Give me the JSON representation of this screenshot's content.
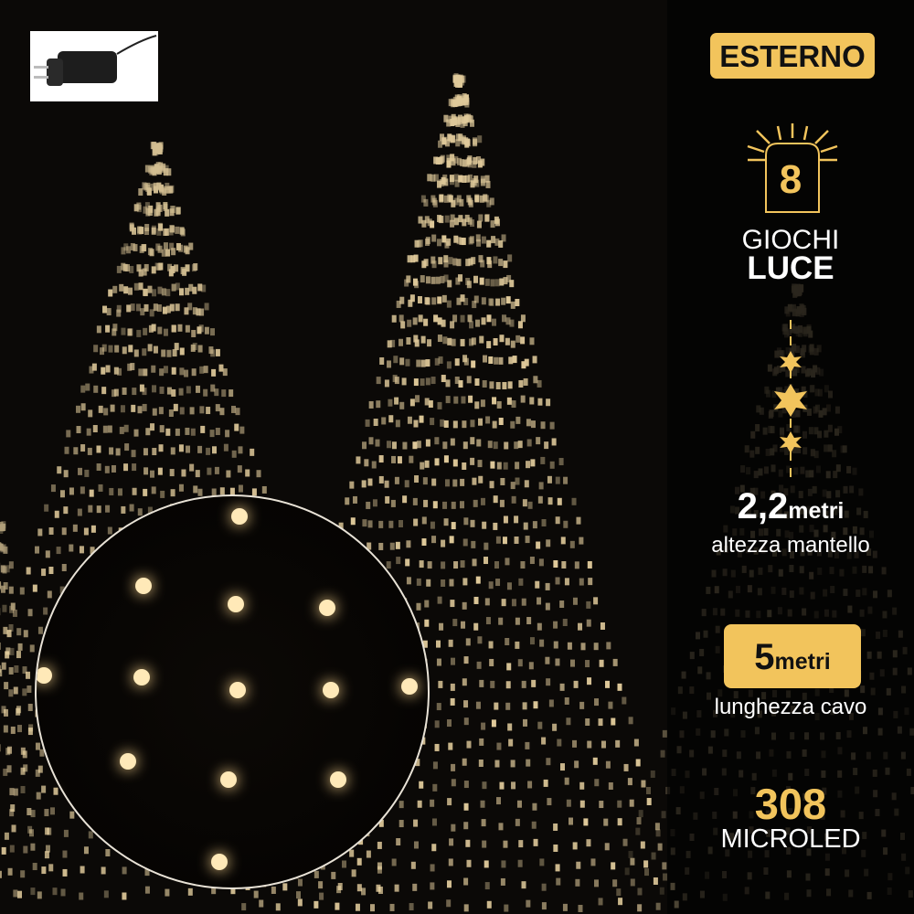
{
  "badge": {
    "label": "ESTERNO"
  },
  "light_games": {
    "count": "8",
    "line1": "GIOCHI",
    "line2": "LUCE"
  },
  "height": {
    "value": "2,2",
    "unit": "metri",
    "caption": "altezza mantello"
  },
  "cable": {
    "value": "5",
    "unit": "metri",
    "caption": "lunghezza cavo"
  },
  "leds": {
    "count": "308",
    "label": "MICROLED"
  },
  "colors": {
    "accent": "#f2c45c",
    "background": "#0b0907",
    "led": "#ffe9b8"
  },
  "icons": [
    "power-adapter-plug",
    "light-box-icon",
    "star-height-icon"
  ]
}
